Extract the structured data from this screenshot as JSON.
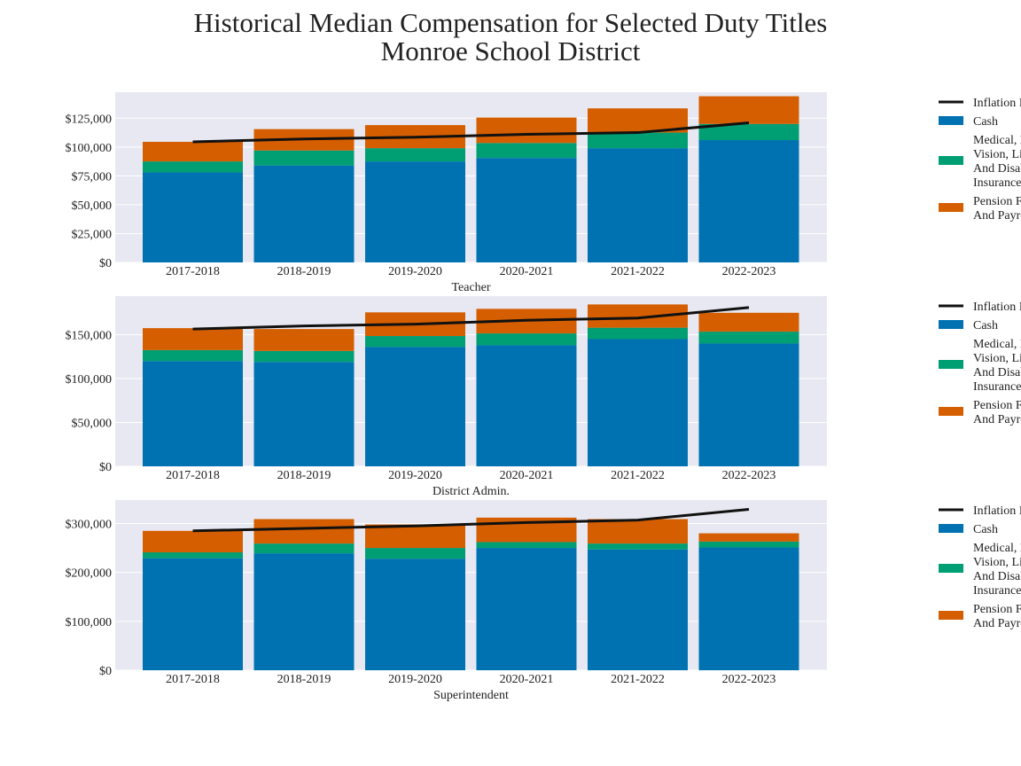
{
  "figure": {
    "title_line1": "Historical Median Compensation for Selected Duty Titles",
    "title_line2": "Monroe School District"
  },
  "colors": {
    "cash": "#0072b2",
    "benefits": "#009e73",
    "pension": "#d55e00",
    "inflation": "#111111",
    "plot_bg": "#e8e8f2",
    "grid": "#ffffff"
  },
  "legend": {
    "items": [
      {
        "label_lines": [
          "Inflation I"
        ],
        "kind": "line",
        "color_key": "inflation"
      },
      {
        "label_lines": [
          "Cash"
        ],
        "kind": "box",
        "color_key": "cash"
      },
      {
        "label_lines": [
          "Medical, D",
          "Vision, Li",
          "And Disab",
          "Insurance"
        ],
        "kind": "box",
        "color_key": "benefits"
      },
      {
        "label_lines": [
          "Pension F",
          "And Payro"
        ],
        "kind": "box",
        "color_key": "pension"
      }
    ]
  },
  "chart_data": [
    {
      "type": "bar",
      "stacked": true,
      "xlabel": "Teacher",
      "categories": [
        "2017-2018",
        "2018-2019",
        "2019-2020",
        "2020-2021",
        "2021-2022",
        "2022-2023"
      ],
      "ylim": [
        0,
        147500
      ],
      "yticks": [
        0,
        25000,
        50000,
        75000,
        100000,
        125000
      ],
      "ytick_labels": [
        "$0",
        "$25,000",
        "$50,000",
        "$75,000",
        "$100,000",
        "$125,000"
      ],
      "series": [
        {
          "key": "cash",
          "values": [
            78000,
            84000,
            87500,
            90500,
            99000,
            106000
          ]
        },
        {
          "key": "benefits",
          "values": [
            9500,
            13000,
            11500,
            13000,
            13500,
            14000
          ]
        },
        {
          "key": "pension",
          "values": [
            17000,
            18500,
            20000,
            22000,
            21000,
            24000
          ]
        }
      ],
      "line": {
        "key": "inflation",
        "values": [
          104500,
          107000,
          108500,
          111000,
          112500,
          121000
        ]
      },
      "grid": true
    },
    {
      "type": "bar",
      "stacked": true,
      "xlabel": "District Admin.",
      "categories": [
        "2017-2018",
        "2018-2019",
        "2019-2020",
        "2020-2021",
        "2021-2022",
        "2022-2023"
      ],
      "ylim": [
        0,
        194000
      ],
      "yticks": [
        0,
        50000,
        100000,
        150000
      ],
      "ytick_labels": [
        "$0",
        "$50,000",
        "$100,000",
        "$150,000"
      ],
      "series": [
        {
          "key": "cash",
          "values": [
            120000,
            119000,
            136000,
            138000,
            145000,
            140000
          ]
        },
        {
          "key": "benefits",
          "values": [
            12500,
            12500,
            12500,
            13500,
            13000,
            13500
          ]
        },
        {
          "key": "pension",
          "values": [
            25000,
            25000,
            27000,
            28000,
            26500,
            21500
          ]
        }
      ],
      "line": {
        "key": "inflation",
        "values": [
          156500,
          160000,
          162000,
          166500,
          169000,
          181000
        ]
      },
      "grid": true
    },
    {
      "type": "bar",
      "stacked": true,
      "xlabel": "Superintendent",
      "categories": [
        "2017-2018",
        "2018-2019",
        "2019-2020",
        "2020-2021",
        "2021-2022",
        "2022-2023"
      ],
      "ylim": [
        0,
        348000
      ],
      "yticks": [
        0,
        100000,
        200000,
        300000
      ],
      "ytick_labels": [
        "$0",
        "$100,000",
        "$200,000",
        "$300,000"
      ],
      "series": [
        {
          "key": "cash",
          "values": [
            229000,
            239000,
            228000,
            250000,
            247000,
            251000
          ]
        },
        {
          "key": "benefits",
          "values": [
            12000,
            20000,
            22000,
            12000,
            12000,
            12000
          ]
        },
        {
          "key": "pension",
          "values": [
            44000,
            50000,
            48000,
            50000,
            50000,
            17000
          ]
        }
      ],
      "line": {
        "key": "inflation",
        "values": [
          285000,
          290000,
          295000,
          302000,
          307000,
          329000
        ]
      },
      "grid": true
    }
  ]
}
